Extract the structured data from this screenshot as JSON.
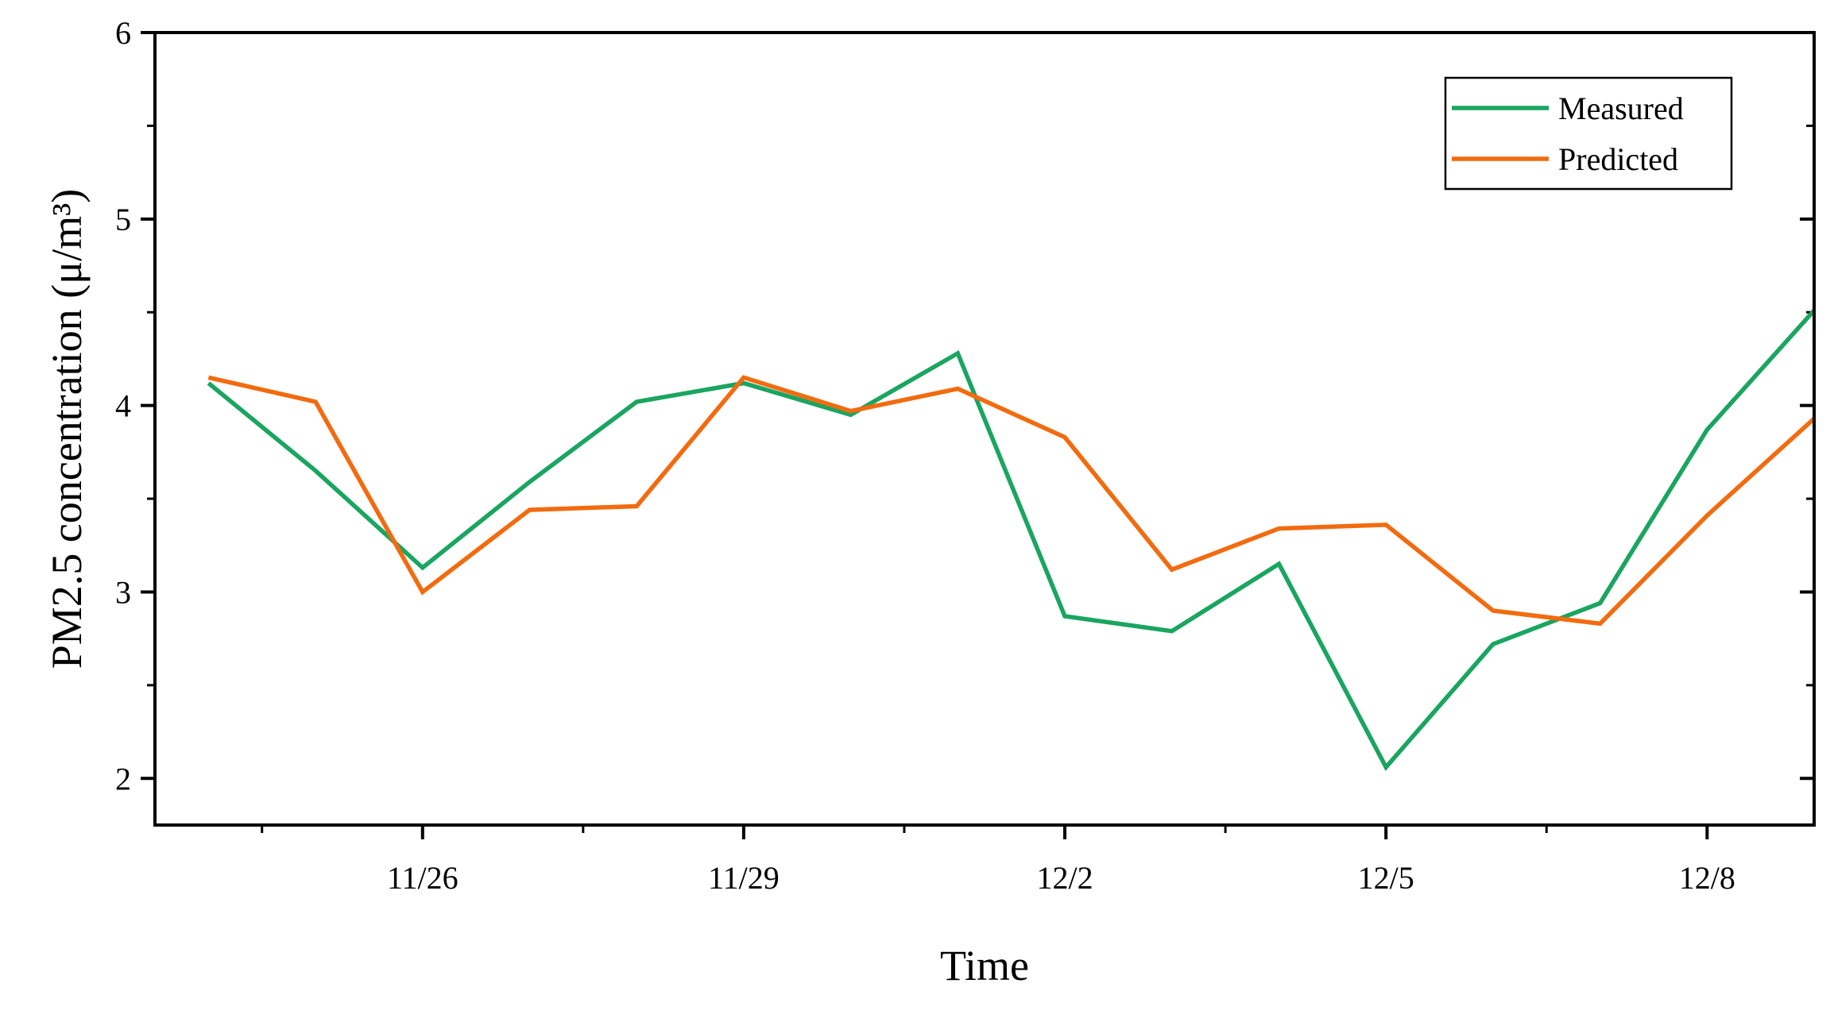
{
  "chart_data": {
    "type": "line",
    "xlabel": "Time",
    "ylabel": "PM2.5 concentration (μ/m³)",
    "x": [
      "11/24",
      "11/25",
      "11/26",
      "11/27",
      "11/28",
      "11/29",
      "11/30",
      "12/1",
      "12/2",
      "12/3",
      "12/4",
      "12/5",
      "12/6",
      "12/7",
      "12/8",
      "12/9"
    ],
    "x_ticks": [
      "11/26",
      "11/29",
      "12/2",
      "12/5",
      "12/8"
    ],
    "xlim": [
      "11/23.5",
      "12/9"
    ],
    "ylim": [
      1.75,
      6
    ],
    "y_ticks": [
      2,
      3,
      4,
      5,
      6
    ],
    "series": [
      {
        "name": "Measured",
        "color": "#1aa560",
        "values": [
          4.12,
          3.65,
          3.13,
          3.59,
          4.02,
          4.12,
          3.95,
          4.28,
          2.87,
          2.79,
          3.15,
          2.06,
          2.72,
          2.94,
          3.87,
          4.51
        ]
      },
      {
        "name": "Predicted",
        "color": "#f26b0f",
        "values": [
          4.15,
          4.02,
          3.0,
          3.44,
          3.46,
          4.15,
          3.97,
          4.09,
          3.83,
          3.12,
          3.34,
          3.36,
          2.9,
          2.83,
          3.41,
          3.93
        ]
      }
    ],
    "legend_position": "top-right",
    "grid": false
  }
}
